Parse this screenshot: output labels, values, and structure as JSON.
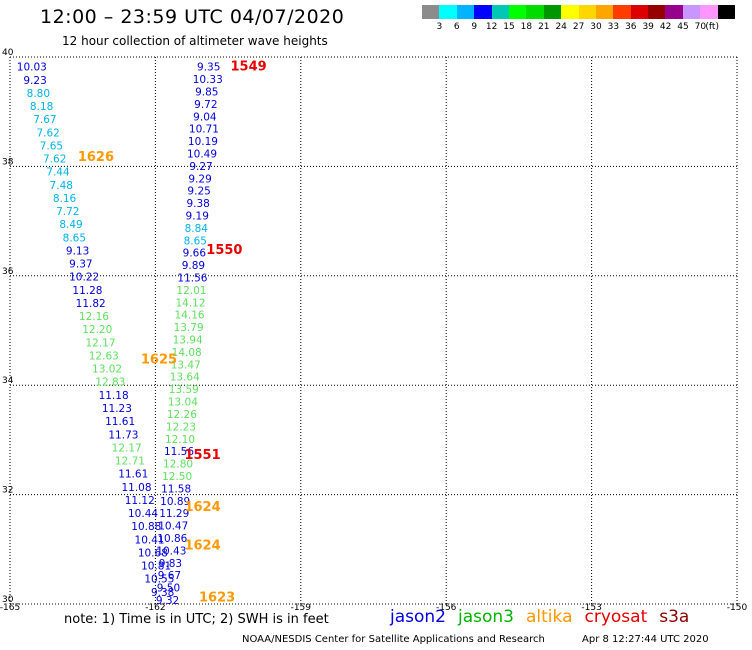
{
  "title": "12:00 – 23:59 UTC 04/07/2020",
  "subtitle": "12 hour collection of altimeter wave heights",
  "colorbar": {
    "colors": [
      "#8c8c8c",
      "#00ffff",
      "#00b4ff",
      "#0000ff",
      "#00c8b4",
      "#00ff00",
      "#00dc00",
      "#009600",
      "#ffff00",
      "#ffd700",
      "#ffa500",
      "#ff3c00",
      "#dc0000",
      "#960000",
      "#96008c",
      "#c896ff",
      "#ff96ff",
      "#000000"
    ],
    "labels": [
      "3",
      "6",
      "9",
      "12",
      "15",
      "18",
      "21",
      "24",
      "27",
      "30",
      "33",
      "36",
      "39",
      "42",
      "45",
      "70"
    ],
    "unit": "(ft)"
  },
  "map": {
    "lon_ticks": [
      "-165",
      "-162",
      "-159",
      "-156",
      "-153",
      "-150"
    ],
    "lat_ticks": [
      "40",
      "38",
      "36",
      "34",
      "32",
      "30"
    ]
  },
  "tracks": [
    {
      "satellite": "jason2",
      "start": [
        -164.55,
        39.75
      ],
      "end": [
        -161.85,
        30.15
      ],
      "values": [
        "10.03",
        "9.23",
        "8.80",
        "8.18",
        "7.67",
        "7.62",
        "7.65",
        "7.62",
        "7.44",
        "7.48",
        "8.16",
        "7.72",
        "8.49",
        "8.65",
        "9.13",
        "9.37",
        "10.22",
        "11.28",
        "11.82",
        "12.16",
        "12.20",
        "12.17",
        "12.63",
        "13.02",
        "12.83",
        "11.18",
        "11.23",
        "11.61",
        "11.73",
        "12.17",
        "12.71",
        "11.61",
        "11.08",
        "11.12",
        "10.44",
        "10.88",
        "10.41",
        "10.68",
        "10.81",
        "10.55",
        "9.38"
      ],
      "color_by_value": true
    },
    {
      "satellite": "jason3",
      "start": [
        -160.9,
        39.75
      ],
      "end": [
        -161.75,
        30.0
      ],
      "values": [
        "9.35",
        "10.33",
        "9.85",
        "9.72",
        "9.04",
        "10.71",
        "10.19",
        "10.49",
        "9.27",
        "9.29",
        "9.25",
        "9.38",
        "9.19",
        "8.84",
        "8.65",
        "9.66",
        "9.89",
        "11.56",
        "12.01",
        "14.12",
        "14.16",
        "13.79",
        "13.94",
        "14.08",
        "13.47",
        "13.64",
        "13.59",
        "13.04",
        "12.26",
        "12.23",
        "12.10",
        "11.56",
        "12.80",
        "12.50",
        "11.58",
        "10.89",
        "11.29",
        "10.47",
        "10.86",
        "10.43",
        "9.83",
        "9.67",
        "9.50",
        "9.32"
      ],
      "color_by_value": true
    }
  ],
  "pass_labels": [
    {
      "text": "1549",
      "lon": -160.45,
      "lat": 39.75,
      "color": "#e60000"
    },
    {
      "text": "1550",
      "lon": -160.95,
      "lat": 36.4,
      "color": "#e60000"
    },
    {
      "text": "1551",
      "lon": -161.4,
      "lat": 32.65,
      "color": "#e60000"
    },
    {
      "text": "1626",
      "lon": -163.6,
      "lat": 38.1,
      "color": "#ff9900"
    },
    {
      "text": "1625",
      "lon": -162.3,
      "lat": 34.4,
      "color": "#ff9900"
    },
    {
      "text": "1624",
      "lon": -161.4,
      "lat": 31.7,
      "color": "#ff9900"
    },
    {
      "text": "1624",
      "lon": -161.4,
      "lat": 31.0,
      "color": "#ff9900"
    },
    {
      "text": "1623",
      "lon": -161.1,
      "lat": 30.05,
      "color": "#ff9900"
    }
  ],
  "note": "note: 1) Time is in UTC; 2) SWH is in feet",
  "legend": [
    {
      "label": "jason2",
      "color": "#0000dc"
    },
    {
      "label": "jason3",
      "color": "#00b400"
    },
    {
      "label": "altika",
      "color": "#ff9900"
    },
    {
      "label": "cryosat",
      "color": "#e60000"
    },
    {
      "label": "s3a",
      "color": "#8c0000"
    }
  ],
  "credit": "NOAA/NESDIS Center for Satellite Applications and Research",
  "timestamp": "Apr  8 12:27:44 UTC 2020"
}
